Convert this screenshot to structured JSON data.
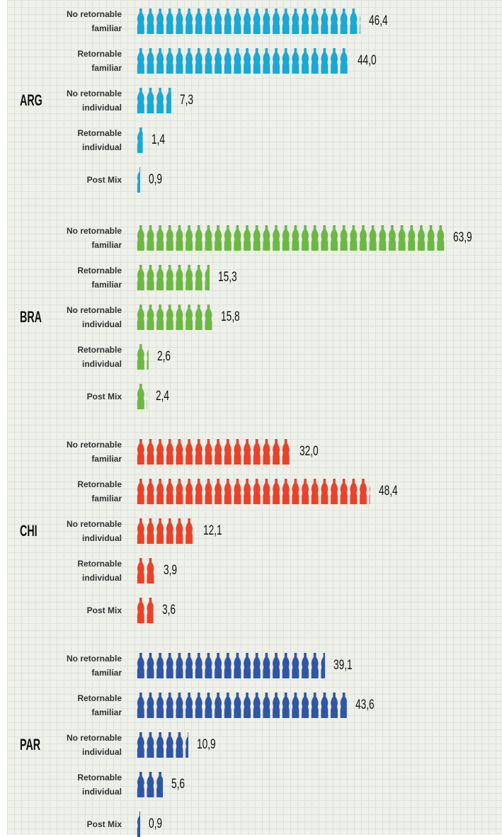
{
  "chart_data": [
    {
      "type": "pictogram",
      "title": "ARG",
      "color": "#1aa8d4",
      "categories": [
        "No retornable familiar",
        "Retornable familiar",
        "No retornable individual",
        "Retornable individual",
        "Post Mix"
      ],
      "values": [
        46.4,
        44.0,
        7.3,
        1.4,
        0.9
      ],
      "value_labels": [
        "46,4",
        "44,0",
        "7,3",
        "1,4",
        "0,9"
      ]
    },
    {
      "type": "pictogram",
      "title": "BRA",
      "color": "#6cb843",
      "categories": [
        "No retornable familiar",
        "Retornable familiar",
        "No retornable individual",
        "Retornable individual",
        "Post Mix"
      ],
      "values": [
        63.9,
        15.3,
        15.8,
        2.6,
        2.4
      ],
      "value_labels": [
        "63,9",
        "15,3",
        "15,8",
        "2,6",
        "2,4"
      ]
    },
    {
      "type": "pictogram",
      "title": "CHI",
      "color": "#e8432a",
      "categories": [
        "No retornable familiar",
        "Retornable familiar",
        "No retornable individual",
        "Retornable individual",
        "Post Mix"
      ],
      "values": [
        32.0,
        48.4,
        12.1,
        3.9,
        3.6
      ],
      "value_labels": [
        "32,0",
        "48,4",
        "12,1",
        "3,9",
        "3,6"
      ]
    },
    {
      "type": "pictogram",
      "title": "PAR",
      "color": "#2f56a5",
      "categories": [
        "No retornable familiar",
        "Retornable familiar",
        "No retornable individual",
        "Retornable individual",
        "Post Mix"
      ],
      "values": [
        39.1,
        43.6,
        10.9,
        5.6,
        0.9
      ],
      "value_labels": [
        "39,1",
        "43,6",
        "10,9",
        "5,6",
        "0,9"
      ]
    }
  ]
}
